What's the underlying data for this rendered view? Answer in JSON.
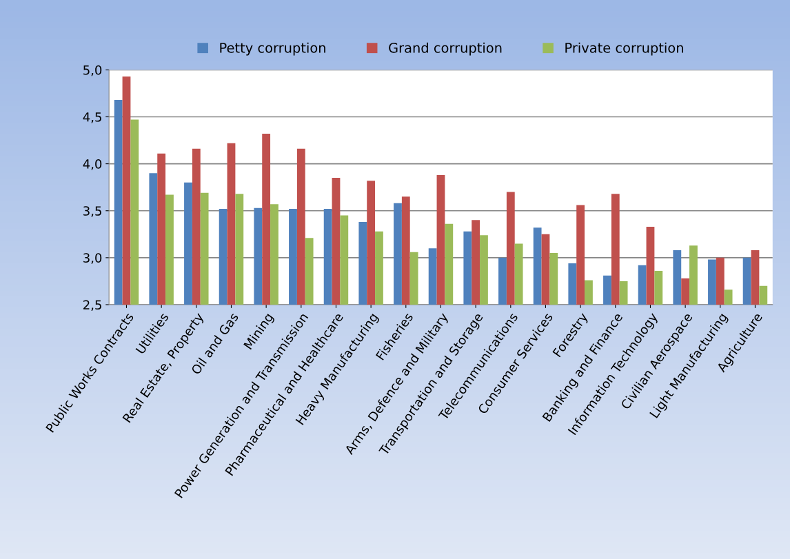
{
  "chart_data": {
    "type": "bar",
    "categories": [
      "Public Works Contracts",
      "Utilities",
      "Real Estate, Property",
      "Oil and Gas",
      "Mining",
      "Power Generation and Transmission",
      "Pharmaceutical and Healthcare",
      "Heavy Manufacturing",
      "Fisheries",
      "Arms, Defence and Military",
      "Transportation and Storage",
      "Telecommunications",
      "Consumer Services",
      "Forestry",
      "Banking and Finance",
      "Information Technology",
      "Civilian Aerospace",
      "Light Manufacturing",
      "Agriculture"
    ],
    "series": [
      {
        "name": "Petty corruption",
        "color": "#4f81bd",
        "values": [
          4.68,
          3.9,
          3.8,
          3.52,
          3.53,
          3.52,
          3.52,
          3.38,
          3.58,
          3.1,
          3.28,
          3.0,
          3.32,
          2.94,
          2.81,
          2.92,
          3.08,
          2.98,
          3.0
        ]
      },
      {
        "name": "Grand corruption",
        "color": "#c0504d",
        "values": [
          4.93,
          4.11,
          4.16,
          4.22,
          4.32,
          4.16,
          3.85,
          3.82,
          3.65,
          3.88,
          3.4,
          3.7,
          3.25,
          3.56,
          3.68,
          3.33,
          2.78,
          3.0,
          3.08
        ]
      },
      {
        "name": "Private corruption",
        "color": "#9bbb59",
        "values": [
          4.47,
          3.67,
          3.69,
          3.68,
          3.57,
          3.21,
          3.45,
          3.28,
          3.06,
          3.36,
          3.24,
          3.15,
          3.05,
          2.76,
          2.75,
          2.86,
          3.13,
          2.66,
          2.7
        ]
      }
    ],
    "ylim": [
      2.5,
      5.0
    ],
    "yticks": [
      {
        "value": 2.5,
        "label": "2,5"
      },
      {
        "value": 3.0,
        "label": "3,0"
      },
      {
        "value": 3.5,
        "label": "3,5"
      },
      {
        "value": 4.0,
        "label": "4,0"
      },
      {
        "value": 4.5,
        "label": "4,5"
      },
      {
        "value": 5.0,
        "label": "5,0"
      }
    ],
    "grid": "y",
    "legend": "top"
  }
}
